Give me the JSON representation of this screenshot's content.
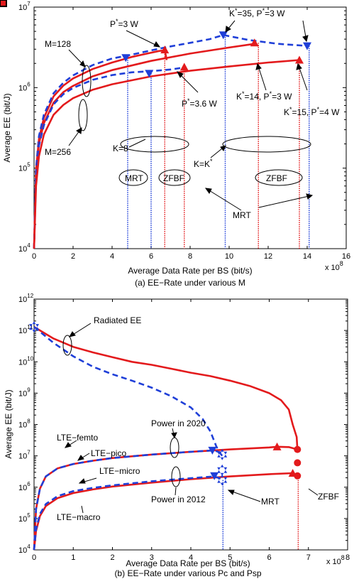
{
  "colors": {
    "red": "#e31a1c",
    "blue": "#1f3fd8",
    "frame": "#000000"
  },
  "chart_data": [
    {
      "type": "line",
      "scale_y": "log",
      "caption": "(a) EE−Rate under various M",
      "xlabel": "Average Data Rate per BS (bit/s)",
      "ylabel": "Average EE  (bit/J)",
      "x_multiplier_label": "x 10",
      "x_multiplier_exp": "8",
      "xlim": [
        0,
        16
      ],
      "ylim_exp": [
        4,
        7
      ],
      "xticks": [
        "0",
        "2",
        "4",
        "6",
        "8",
        "10",
        "12",
        "14",
        "16"
      ],
      "yticks": [
        {
          "base": "10",
          "exp": "4"
        },
        {
          "base": "10",
          "exp": "5"
        },
        {
          "base": "10",
          "exp": "6"
        },
        {
          "base": "10",
          "exp": "7"
        }
      ],
      "series": [
        {
          "style": "red-solid",
          "x": [
            0,
            0.1,
            0.25,
            0.5,
            1,
            1.5,
            2,
            3,
            4,
            5,
            5.8,
            6.4,
            6.7
          ],
          "y": [
            10000,
            95000,
            230000,
            420000,
            780000,
            1060000,
            1300000,
            1700000,
            2050000,
            2400000,
            2650000,
            2850000,
            2900000
          ],
          "end_x": 6.8,
          "end_y": 2200000
        },
        {
          "style": "blue-dashed",
          "x": [
            0,
            0.1,
            0.25,
            0.5,
            1,
            1.5,
            2,
            3,
            4,
            4.8,
            6,
            7,
            8,
            9,
            9.7,
            11,
            12.5,
            14
          ],
          "y": [
            10000,
            100000,
            250000,
            460000,
            850000,
            1150000,
            1420000,
            1900000,
            2300000,
            2500000,
            2900000,
            3250000,
            3600000,
            4000000,
            4500000,
            3900000,
            3500000,
            3300000
          ]
        },
        {
          "style": "red-solid",
          "x": [
            0,
            0.1,
            0.25,
            0.5,
            1,
            1.5,
            2,
            3,
            4,
            6,
            8,
            10,
            11.3,
            11.5
          ],
          "y": [
            10000,
            85000,
            200000,
            360000,
            650000,
            880000,
            1050000,
            1380000,
            1650000,
            2150000,
            2650000,
            3150000,
            3500000,
            3300000
          ]
        },
        {
          "style": "blue-dashed",
          "x": [
            0,
            0.1,
            0.25,
            0.5,
            1,
            1.5,
            2,
            3,
            4,
            5,
            6,
            7,
            7.5
          ],
          "y": [
            10000,
            80000,
            190000,
            340000,
            620000,
            830000,
            990000,
            1250000,
            1430000,
            1550000,
            1600000,
            1680000,
            1750000
          ]
        },
        {
          "style": "red-solid",
          "x": [
            0,
            0.1,
            0.25,
            0.5,
            1,
            1.5,
            2,
            3,
            4,
            6,
            8,
            10,
            12,
            13.6
          ],
          "y": [
            10000,
            60000,
            140000,
            260000,
            460000,
            610000,
            740000,
            940000,
            1100000,
            1380000,
            1620000,
            1830000,
            2050000,
            2200000
          ]
        }
      ],
      "triangles_down_blue": [
        [
          4.7,
          2350000
        ],
        [
          5.9,
          1500000
        ],
        [
          9.7,
          4500000
        ],
        [
          14,
          3300000
        ]
      ],
      "triangles_up_red": [
        [
          6.7,
          2950000
        ],
        [
          7.7,
          1800000
        ],
        [
          11.3,
          3600000
        ],
        [
          13.6,
          2200000
        ]
      ],
      "vlines": [
        {
          "x": 4.8,
          "color": "blue",
          "y_top": 2350000
        },
        {
          "x": 6.0,
          "color": "blue",
          "y_top": 1500000
        },
        {
          "x": 6.7,
          "color": "red",
          "y_top": 2950000
        },
        {
          "x": 7.7,
          "color": "red",
          "y_top": 1800000
        },
        {
          "x": 9.8,
          "color": "blue",
          "y_top": 4500000
        },
        {
          "x": 11.5,
          "color": "red",
          "y_top": 3600000
        },
        {
          "x": 13.6,
          "color": "red",
          "y_top": 2200000
        },
        {
          "x": 14.1,
          "color": "blue",
          "y_top": 3300000
        }
      ],
      "annotations": {
        "p3": {
          "main": "P",
          "sup": "*",
          "rest": "=3  W"
        },
        "k35": {
          "main": "K",
          "sup": "*",
          "mid": "=35, P",
          "sup2": "*",
          "rest": "=3  W"
        },
        "m128": "M=128",
        "m256": "M=256",
        "p36": {
          "main": "P",
          "sup": "*",
          "rest": "=3.6  W"
        },
        "k14": {
          "main": "K",
          "sup": "*",
          "mid": "=14, P",
          "sup2": "*",
          "rest": "=3 W"
        },
        "k15": {
          "main": "K",
          "sup": "*",
          "mid": "=15, P",
          "sup2": "*",
          "rest": "=4 W"
        },
        "k8": "K=8",
        "kk": {
          "main": "K=K",
          "sup": "*"
        },
        "mrt_small": "MRT",
        "zfbf_small": "ZFBF",
        "zfbf_big": "ZFBF",
        "mrt_big": "MRT"
      }
    },
    {
      "type": "line",
      "scale_y": "log",
      "caption": "(b) EE−Rate under various Pc and Psp",
      "xlabel": "Average Data Rate per BS (bit/s)",
      "ylabel": "Average EE  (bit/J)",
      "x_multiplier_label": "x 10",
      "x_multiplier_exp": "8",
      "xlim": [
        0,
        8
      ],
      "ylim_exp": [
        4,
        12
      ],
      "xticks": [
        "0",
        "1",
        "2",
        "3",
        "4",
        "5",
        "6",
        "7",
        "8"
      ],
      "yticks": [
        {
          "base": "10",
          "exp": "4"
        },
        {
          "base": "10",
          "exp": "5"
        },
        {
          "base": "10",
          "exp": "6"
        },
        {
          "base": "10",
          "exp": "7"
        },
        {
          "base": "10",
          "exp": "8"
        },
        {
          "base": "10",
          "exp": "9"
        },
        {
          "base": "10",
          "exp": "10"
        },
        {
          "base": "10",
          "exp": "11"
        },
        {
          "base": "10",
          "exp": "12"
        }
      ],
      "series": [
        {
          "style": "red-solid",
          "x": [
            0,
            0.5,
            1,
            1.5,
            2,
            2.5,
            3,
            3.5,
            4,
            4.5,
            5,
            5.5,
            6,
            6.3,
            6.5,
            6.6,
            6.7,
            6.72
          ],
          "y": [
            130000000000,
            55000000000,
            30000000000,
            20000000000,
            14000000000,
            10000000000,
            8000000000,
            6000000000,
            4500000000,
            3500000000,
            2500000000,
            1700000000,
            1000000000,
            600000000,
            300000000,
            100000000,
            40000000,
            15000000
          ]
        },
        {
          "style": "blue-dashed",
          "x": [
            0,
            0.5,
            1,
            1.5,
            2,
            2.5,
            3,
            3.5,
            4,
            4.3,
            4.5,
            4.65,
            4.75,
            4.8
          ],
          "y": [
            130000000000,
            40000000000,
            15000000000,
            7000000000,
            4000000000,
            2500000000,
            1500000000,
            800000000,
            350000000,
            150000000,
            60000000,
            20000000,
            12000000,
            10000000
          ]
        },
        {
          "style": "red-solid",
          "x": [
            0,
            0.05,
            0.15,
            0.3,
            0.6,
            1,
            1.5,
            2,
            3,
            4,
            5,
            6,
            6.2,
            6.5,
            6.72
          ],
          "y": [
            10000,
            200000,
            900000,
            2200000,
            4000000,
            5500000,
            7000000,
            8500000,
            11000000,
            13500000,
            16000000,
            18500000,
            19500000,
            19000000,
            16000000
          ]
        },
        {
          "style": "blue-dashed",
          "x": [
            0,
            0.05,
            0.15,
            0.3,
            0.6,
            1,
            1.5,
            2,
            3,
            4,
            4.6,
            4.8
          ],
          "y": [
            10000,
            200000,
            900000,
            2200000,
            4000000,
            5500000,
            7000000,
            8500000,
            11000000,
            13500000,
            15000000,
            12000000
          ]
        },
        {
          "style": "red-solid",
          "x": [
            0,
            0.05,
            0.15,
            0.3,
            0.6,
            1,
            1.5,
            2,
            3,
            4,
            5,
            6,
            6.6,
            6.72
          ],
          "y": [
            10000,
            40000,
            120000,
            250000,
            450000,
            650000,
            850000,
            1050000,
            1400000,
            1800000,
            2200000,
            2600000,
            2800000,
            2300000
          ]
        },
        {
          "style": "blue-dashed",
          "x": [
            0,
            0.05,
            0.15,
            0.3,
            0.6,
            1,
            1.5,
            2,
            3,
            4,
            4.6,
            4.8
          ],
          "y": [
            10000,
            45000,
            140000,
            290000,
            520000,
            750000,
            950000,
            1150000,
            1550000,
            1950000,
            2200000,
            1800000
          ]
        }
      ],
      "triangles_down_blue": [
        [
          4.55,
          15000000
        ],
        [
          4.6,
          2300000
        ]
      ],
      "triangles_up_red": [
        [
          6.2,
          19500000
        ],
        [
          6.6,
          2800000
        ]
      ],
      "stars_blue": [
        [
          0,
          130000000000
        ],
        [
          4.8,
          3500000
        ],
        [
          4.8,
          1700000
        ],
        [
          4.8,
          11000000
        ]
      ],
      "circles_red": [
        [
          6.72,
          16000000
        ],
        [
          6.72,
          6000000
        ],
        [
          6.72,
          2300000
        ]
      ],
      "vlines": [
        {
          "x": 4.82,
          "color": "blue",
          "y_top": 1700000
        },
        {
          "x": 6.74,
          "color": "red",
          "y_top": 2300000
        }
      ],
      "squares": [
        {
          "x": 0.8,
          "y": 12000000,
          "color": "#2ca02c"
        },
        {
          "x": 1.12,
          "y": 4800000,
          "color": "#20b2aa"
        },
        {
          "x": 1.05,
          "y": 950000,
          "color": "#cc88cc"
        },
        {
          "x": 1.22,
          "y": 220000,
          "color": "#e31a1c"
        }
      ],
      "annotations": {
        "radiated": "Radiated EE",
        "power2020": "Power in 2020",
        "power2012": "Power in 2012",
        "mrt": "MRT",
        "zfbf": "ZFBF",
        "lte_femto": "LTE−femto",
        "lte_pico": "LTE−pico",
        "lte_micro": "LTE−micro",
        "lte_macro": "LTE−macro"
      }
    }
  ]
}
